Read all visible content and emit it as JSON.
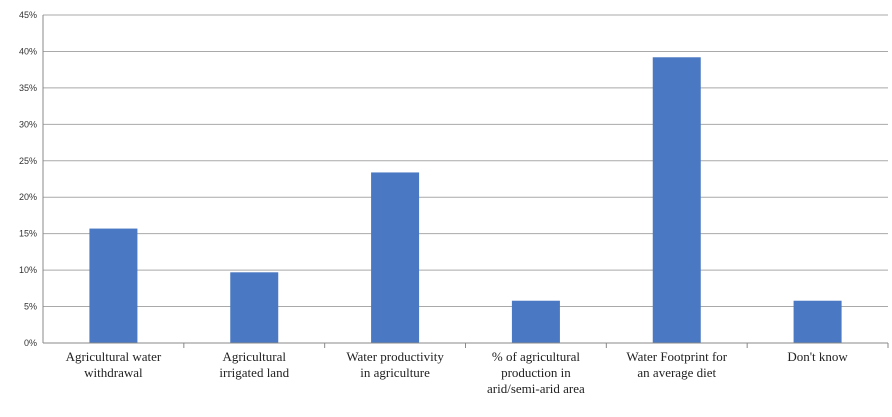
{
  "chart_data": {
    "type": "bar",
    "title": "",
    "xlabel": "",
    "ylabel": "",
    "categories": [
      [
        "Agricultural water",
        "withdrawal"
      ],
      [
        "Agricultural",
        "irrigated land"
      ],
      [
        "Water productivity",
        "in agriculture"
      ],
      [
        "% of agricultural",
        "production in",
        "arid/semi-arid area"
      ],
      [
        "Water Footprint for",
        "an average diet"
      ],
      [
        "Don't know"
      ]
    ],
    "values": [
      15.7,
      9.7,
      23.4,
      5.8,
      39.2,
      5.8
    ],
    "ylim": [
      0,
      45
    ],
    "yticks": [
      "0%",
      "5%",
      "10%",
      "15%",
      "20%",
      "25%",
      "30%",
      "35%",
      "40%",
      "45%"
    ],
    "grid": true,
    "legend": "none",
    "bar_color": "#4a78c2",
    "grid_color": "#a9a9a9"
  }
}
